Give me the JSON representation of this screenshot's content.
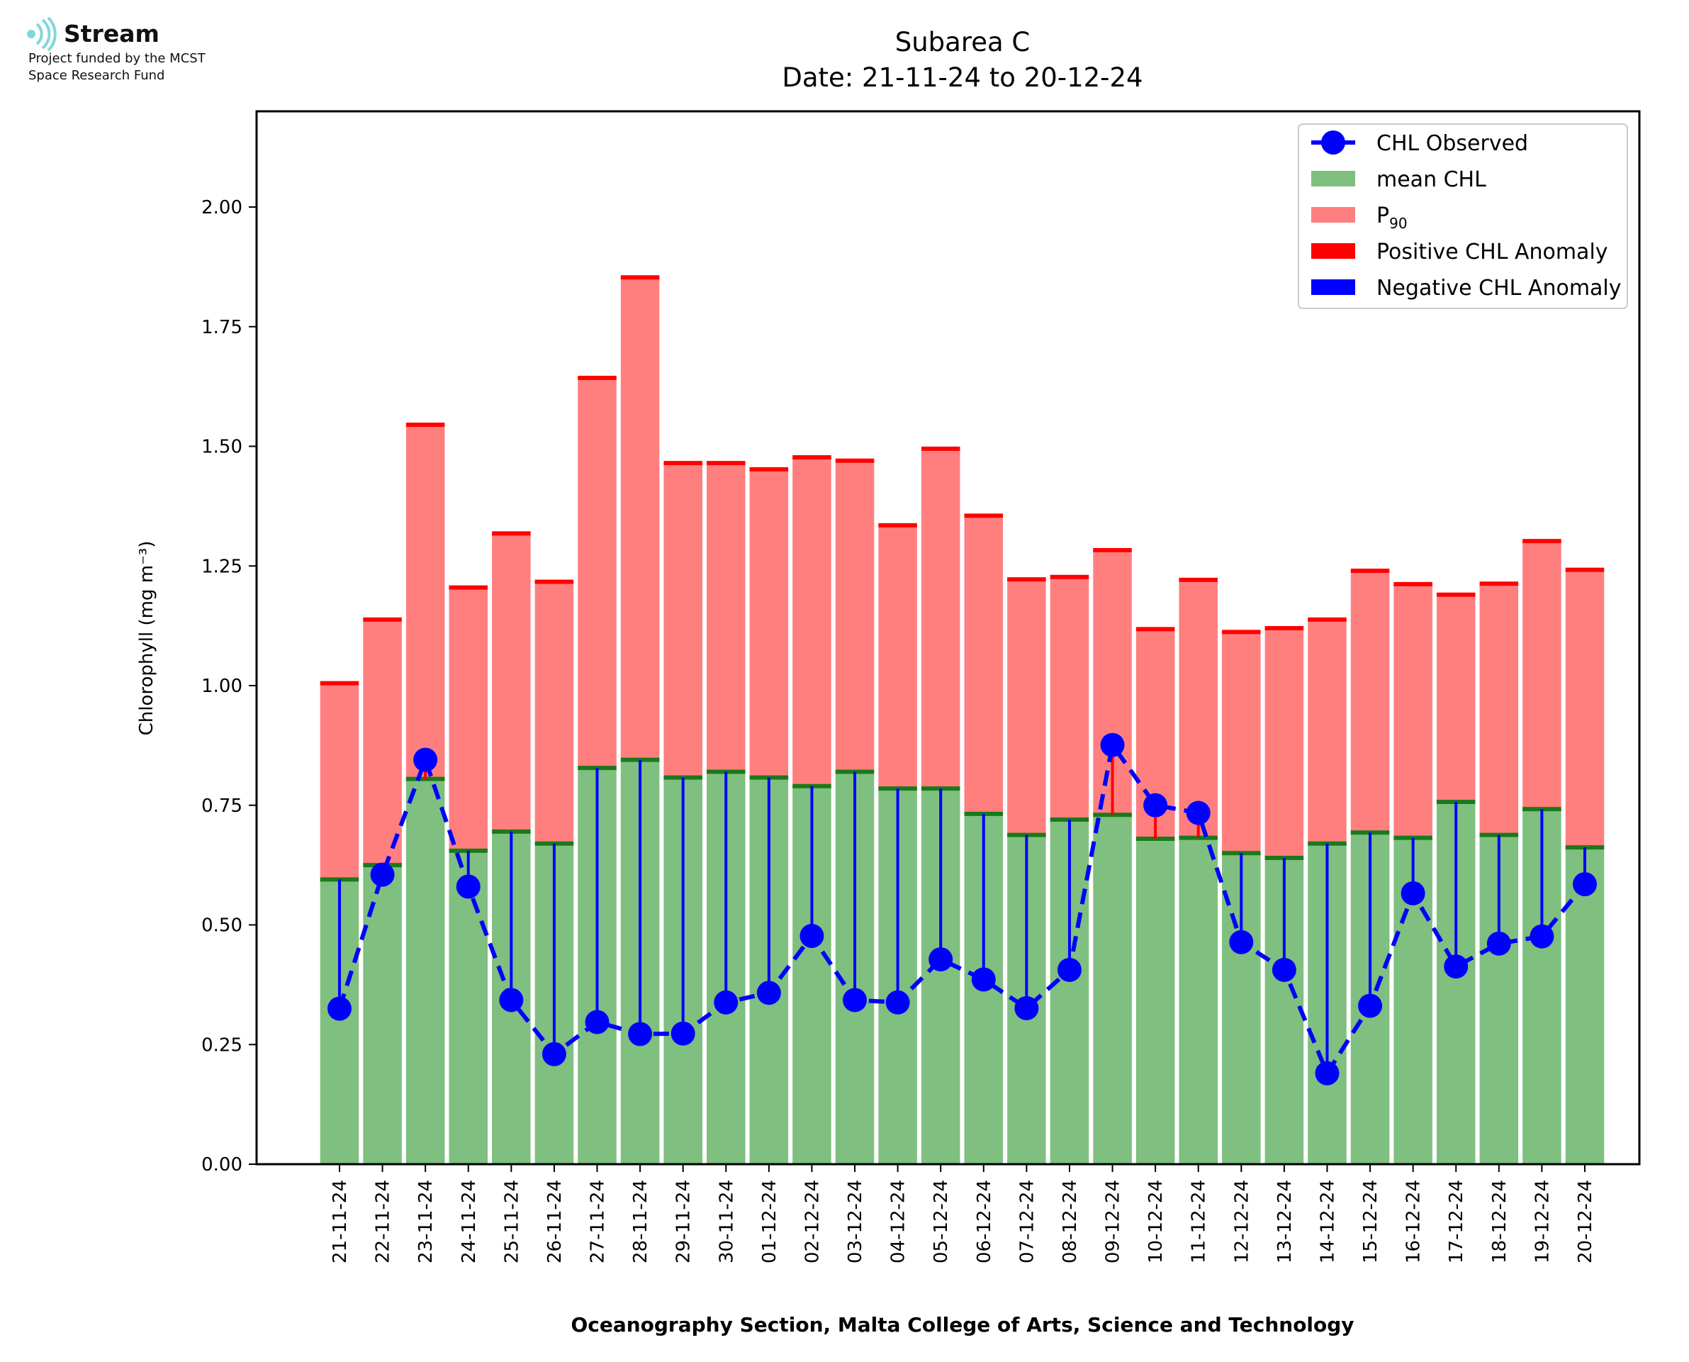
{
  "logo": {
    "name": "Stream",
    "line1": "Project funded by the MCST",
    "line2": "Space Research Fund",
    "color": "#7fd8d8"
  },
  "chart_data": {
    "type": "bar",
    "title": "Subarea C",
    "subtitle": "Date: 21-11-24 to 20-12-24",
    "xlabel": "Oceanography Section, Malta College of Arts, Science and Technology",
    "ylabel": "Chlorophyll (mg m⁻³)",
    "ylim": [
      0,
      2.2
    ],
    "yticks": [
      "0.00",
      "0.25",
      "0.50",
      "0.75",
      "1.00",
      "1.25",
      "1.50",
      "1.75",
      "2.00"
    ],
    "categories": [
      "21-11-24",
      "22-11-24",
      "23-11-24",
      "24-11-24",
      "25-11-24",
      "26-11-24",
      "27-11-24",
      "28-11-24",
      "29-11-24",
      "30-11-24",
      "01-12-24",
      "02-12-24",
      "03-12-24",
      "04-12-24",
      "05-12-24",
      "06-12-24",
      "07-12-24",
      "08-12-24",
      "09-12-24",
      "10-12-24",
      "11-12-24",
      "12-12-24",
      "13-12-24",
      "14-12-24",
      "15-12-24",
      "16-12-24",
      "17-12-24",
      "18-12-24",
      "19-12-24",
      "20-12-24"
    ],
    "series": [
      {
        "name": "CHL Observed",
        "color": "#0000ff",
        "values": [
          0.325,
          0.605,
          0.845,
          0.58,
          0.343,
          0.23,
          0.297,
          0.272,
          0.273,
          0.338,
          0.358,
          0.477,
          0.343,
          0.338,
          0.428,
          0.386,
          0.326,
          0.406,
          0.876,
          0.75,
          0.734,
          0.464,
          0.406,
          0.19,
          0.331,
          0.566,
          0.413,
          0.461,
          0.476,
          0.585
        ]
      },
      {
        "name": "mean CHL",
        "color": "#7fbf7f",
        "values": [
          0.595,
          0.625,
          0.805,
          0.655,
          0.695,
          0.67,
          0.828,
          0.845,
          0.808,
          0.82,
          0.808,
          0.79,
          0.82,
          0.785,
          0.785,
          0.732,
          0.688,
          0.72,
          0.73,
          0.68,
          0.682,
          0.65,
          0.64,
          0.67,
          0.693,
          0.682,
          0.757,
          0.688,
          0.742,
          0.662
        ]
      },
      {
        "name": "P₉₀",
        "color": "#ff7f7f",
        "values": [
          1.005,
          1.138,
          1.545,
          1.205,
          1.318,
          1.217,
          1.643,
          1.853,
          1.465,
          1.465,
          1.452,
          1.477,
          1.47,
          1.335,
          1.495,
          1.355,
          1.222,
          1.227,
          1.283,
          1.118,
          1.221,
          1.112,
          1.12,
          1.138,
          1.24,
          1.212,
          1.19,
          1.213,
          1.302,
          1.242
        ]
      }
    ],
    "legend": {
      "position": "top-right",
      "entries": [
        {
          "label": "CHL Observed",
          "marker": "line-dot",
          "color": "#0000ff"
        },
        {
          "label": "mean CHL",
          "marker": "patch",
          "color": "#7fbf7f"
        },
        {
          "label": "P",
          "sub": "90",
          "marker": "patch",
          "color": "#ff7f7f"
        },
        {
          "label": "Positive CHL Anomaly",
          "marker": "patch",
          "color": "#ff0000"
        },
        {
          "label": "Negative CHL Anomaly",
          "marker": "patch",
          "color": "#0000ff"
        }
      ]
    },
    "grid": false
  }
}
